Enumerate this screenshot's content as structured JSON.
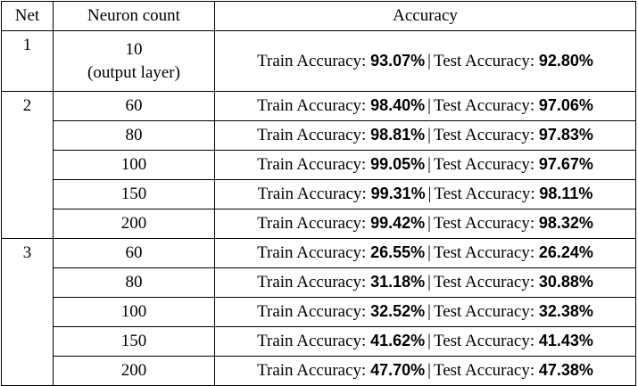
{
  "header": {
    "net": "Net",
    "neuron": "Neuron count",
    "accuracy": "Accuracy"
  },
  "labels": {
    "train": "Train Accuracy: ",
    "test": "Test Accuracy: ",
    "sep": "|"
  },
  "nets": [
    {
      "net": "1",
      "rows": [
        {
          "neuron": "10",
          "neuron_note": "(output layer)",
          "train": "93.07%",
          "test": "92.80%"
        }
      ]
    },
    {
      "net": "2",
      "rows": [
        {
          "neuron": "60",
          "train": "98.40%",
          "test": "97.06%"
        },
        {
          "neuron": "80",
          "train": "98.81%",
          "test": "97.83%"
        },
        {
          "neuron": "100",
          "train": "99.05%",
          "test": "97.67%"
        },
        {
          "neuron": "150",
          "train": "99.31%",
          "test": "98.11%"
        },
        {
          "neuron": "200",
          "train": "99.42%",
          "test": "98.32%"
        }
      ]
    },
    {
      "net": "3",
      "rows": [
        {
          "neuron": "60",
          "train": "26.55%",
          "test": "26.24%"
        },
        {
          "neuron": "80",
          "train": "31.18%",
          "test": "30.88%"
        },
        {
          "neuron": "100",
          "train": "32.52%",
          "test": "32.38%"
        },
        {
          "neuron": "150",
          "train": "41.62%",
          "test": "41.43%"
        },
        {
          "neuron": "200",
          "train": "47.70%",
          "test": "47.38%"
        }
      ]
    }
  ]
}
